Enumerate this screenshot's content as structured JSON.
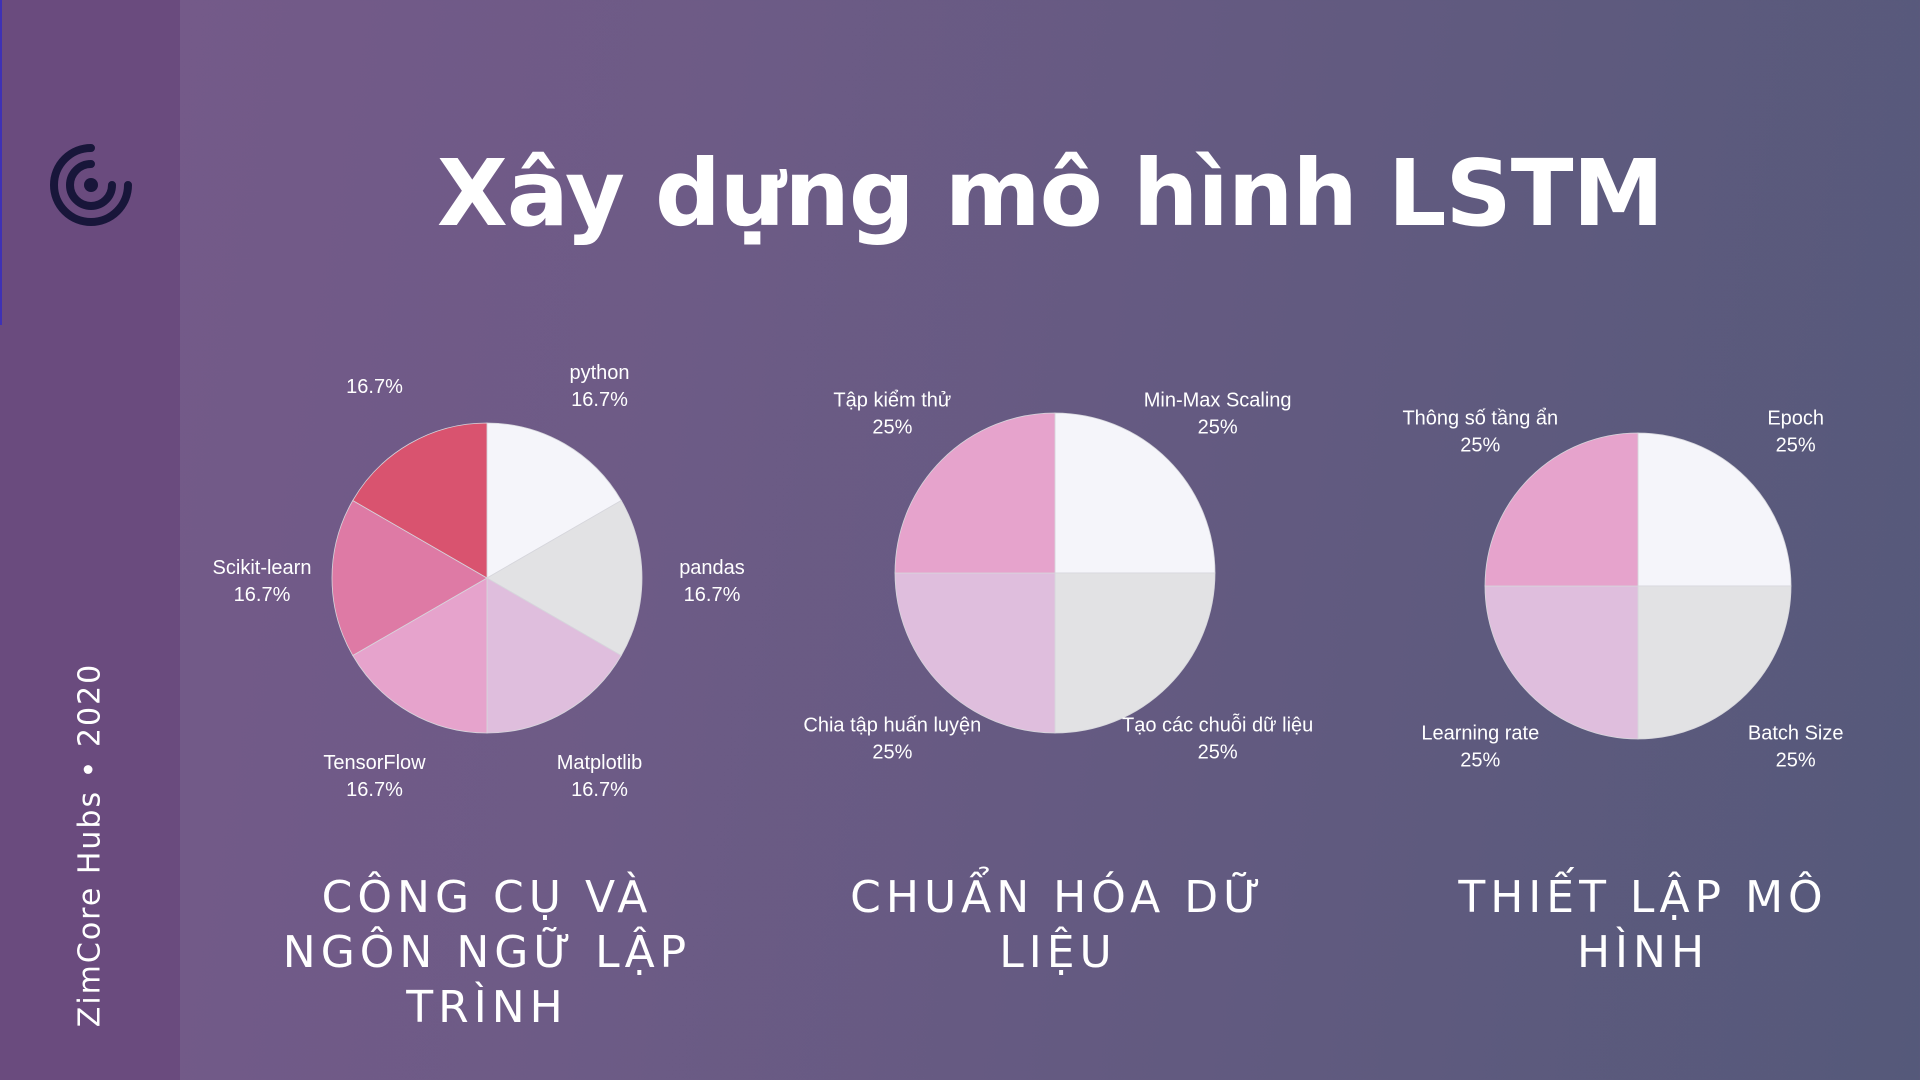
{
  "sidebar": {
    "logo_icon": "target-logo-icon",
    "text": "ZimCore Hubs • 2020"
  },
  "title": "Xây dựng mô hình LSTM",
  "captions": [
    "CÔNG CỤ VÀ NGÔN NGỮ LẬP TRÌNH",
    "CHUẨN HÓA DỮ LIỆU",
    "THIẾT LẬP MÔ HÌNH"
  ],
  "chart_data": [
    {
      "type": "pie",
      "slices": [
        {
          "label": "python",
          "value": 16.7,
          "pct": "16.7%",
          "color": "#f5f5fa"
        },
        {
          "label": "pandas",
          "value": 16.7,
          "pct": "16.7%",
          "color": "#e2e2e4"
        },
        {
          "label": "Matplotlib",
          "value": 16.7,
          "pct": "16.7%",
          "color": "#dfbedd"
        },
        {
          "label": "TensorFlow",
          "value": 16.7,
          "pct": "16.7%",
          "color": "#e6a3cc"
        },
        {
          "label": "Scikit-learn",
          "value": 16.7,
          "pct": "16.7%",
          "color": "#de7aa5"
        },
        {
          "label": "",
          "value": 16.7,
          "pct": "16.7%",
          "color": "#d9536f"
        }
      ]
    },
    {
      "type": "pie",
      "slices": [
        {
          "label": "Min-Max Scaling",
          "value": 25,
          "pct": "25%",
          "color": "#f5f5fa"
        },
        {
          "label": "Tạo các chuỗi dữ liệu",
          "value": 25,
          "pct": "25%",
          "color": "#e2e2e4"
        },
        {
          "label": "Chia tập huấn luyện",
          "value": 25,
          "pct": "25%",
          "color": "#dfbedd"
        },
        {
          "label": "Tập kiểm thử",
          "value": 25,
          "pct": "25%",
          "color": "#e6a3cc"
        }
      ]
    },
    {
      "type": "pie",
      "slices": [
        {
          "label": "Epoch",
          "value": 25,
          "pct": "25%",
          "color": "#f5f5fa"
        },
        {
          "label": "Batch Size",
          "value": 25,
          "pct": "25%",
          "color": "#e2e2e4"
        },
        {
          "label": "Learning rate",
          "value": 25,
          "pct": "25%",
          "color": "#dfbedd"
        },
        {
          "label": "Thông số tầng ẩn",
          "value": 25,
          "pct": "25%",
          "color": "#e6a3cc"
        }
      ]
    }
  ]
}
